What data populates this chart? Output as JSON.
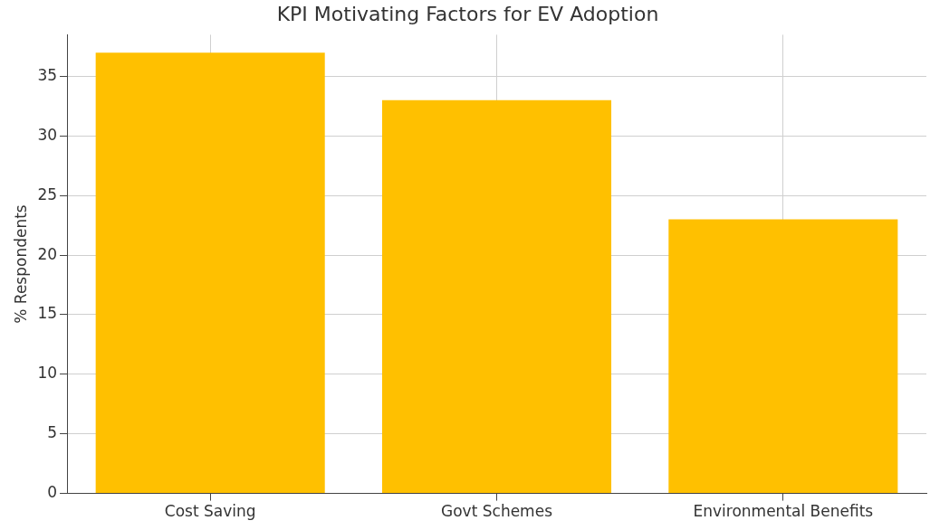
{
  "chart_data": {
    "type": "bar",
    "title": "KPI Motivating Factors for EV Adoption",
    "ylabel": "% Respondents",
    "categories": [
      "Cost Saving",
      "Govt Schemes",
      "Environmental Benefits"
    ],
    "values": [
      37,
      33,
      23
    ],
    "color": "#ffc000",
    "ylim": [
      0,
      38.5
    ],
    "yticks": [
      0,
      5,
      10,
      15,
      20,
      25,
      30,
      35
    ],
    "grid": true
  }
}
